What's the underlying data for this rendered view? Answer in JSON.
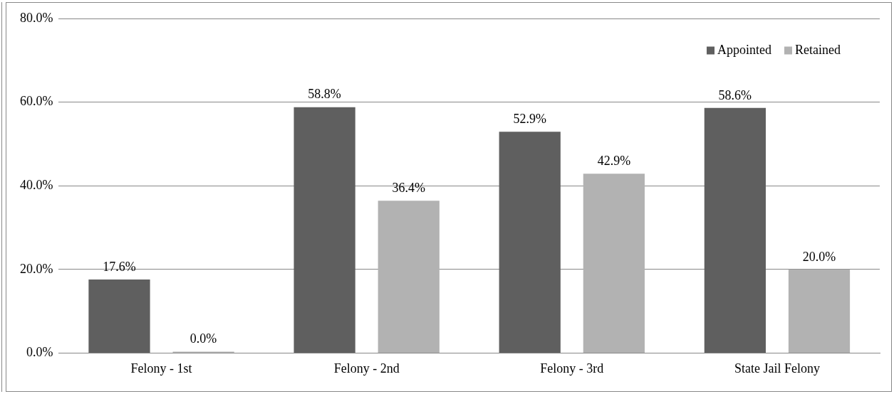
{
  "chart_data": {
    "type": "bar",
    "categories": [
      "Felony - 1st",
      "Felony - 2nd",
      "Felony - 3rd",
      "State Jail Felony"
    ],
    "series": [
      {
        "name": "Appointed",
        "color": "#5f5f5f",
        "values": [
          17.6,
          58.8,
          52.9,
          58.6
        ],
        "value_labels": [
          "17.6%",
          "58.8%",
          "52.9%",
          "58.6%"
        ]
      },
      {
        "name": "Retained",
        "color": "#b2b2b2",
        "values": [
          0.0,
          36.4,
          42.9,
          20.0
        ],
        "value_labels": [
          "0.0%",
          "36.4%",
          "42.9%",
          "20.0%"
        ]
      }
    ],
    "ylim": [
      0,
      80
    ],
    "yticks": [
      {
        "value": 0,
        "label": "0.0%"
      },
      {
        "value": 20,
        "label": "20.0%"
      },
      {
        "value": 40,
        "label": "40.0%"
      },
      {
        "value": 60,
        "label": "60.0%"
      },
      {
        "value": 80,
        "label": "80.0%"
      }
    ],
    "grid": "y",
    "legend": "top right"
  }
}
